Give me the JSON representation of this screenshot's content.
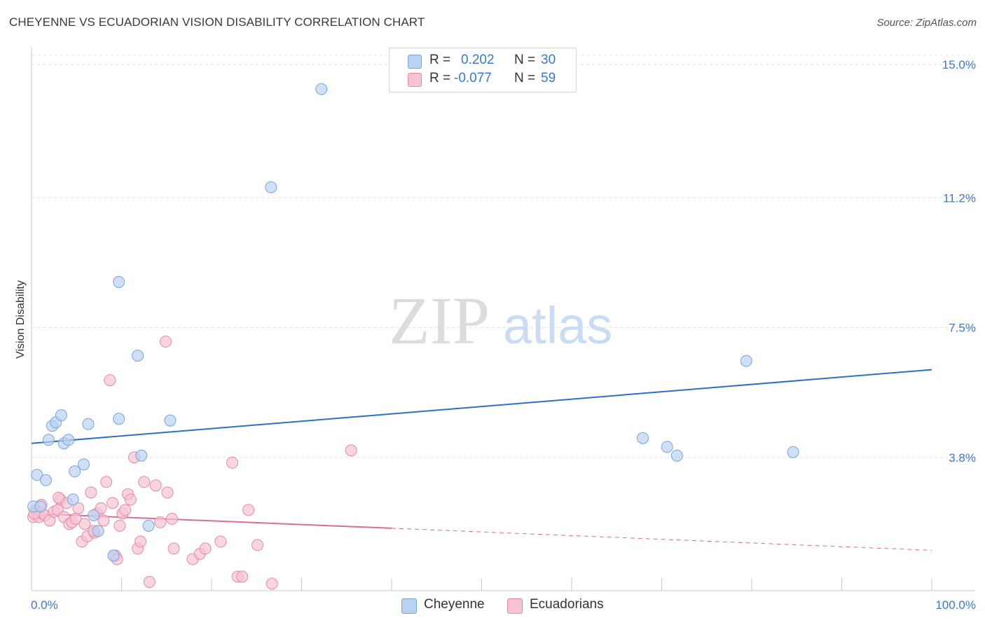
{
  "title": "CHEYENNE VS ECUADORIAN VISION DISABILITY CORRELATION CHART",
  "source": "Source: ZipAtlas.com",
  "watermark": {
    "zip": "ZIP",
    "atlas": "atlas"
  },
  "legend_top": [
    {
      "r_label": "R =",
      "r_value": "0.202",
      "n_label": "N =",
      "n_value": "30"
    },
    {
      "r_label": "R =",
      "r_value": "-0.077",
      "n_label": "N =",
      "n_value": "59"
    }
  ],
  "legend_bottom": [
    "Cheyenne",
    "Ecuadorians"
  ],
  "colors": {
    "cheyenne_fill": "#b9d2f2",
    "cheyenne_stroke": "#7aa5dc",
    "cheyenne_line": "#2c6fcc",
    "ecuador_fill": "#f7c3d3",
    "ecuador_stroke": "#e88aa8",
    "ecuador_line": "#e06a96",
    "tick_label": "#3a78d4",
    "grid": "#e3e3e3"
  },
  "chart_data": {
    "type": "scatter",
    "title": "CHEYENNE VS ECUADORIAN VISION DISABILITY CORRELATION CHART",
    "xlabel": "",
    "ylabel": "Vision Disability",
    "xlim": [
      0,
      100
    ],
    "ylim": [
      0,
      15.5
    ],
    "x_tick_labels": [
      "0.0%",
      "100.0%"
    ],
    "y_ticks": [
      3.8,
      7.5,
      11.2,
      15.0
    ],
    "y_tick_labels": [
      "3.8%",
      "7.5%",
      "11.2%",
      "15.0%"
    ],
    "grid": true,
    "legend_position": "top-center",
    "series": [
      {
        "name": "Cheyenne",
        "r": 0.202,
        "n": 30,
        "trend": {
          "x": [
            0,
            100
          ],
          "y": [
            4.2,
            6.3
          ],
          "dashed_from": null
        },
        "points": [
          [
            0.2,
            2.4
          ],
          [
            1.0,
            2.4
          ],
          [
            0.6,
            3.3
          ],
          [
            1.6,
            3.15
          ],
          [
            1.9,
            4.3
          ],
          [
            2.3,
            4.7
          ],
          [
            2.7,
            4.8
          ],
          [
            3.3,
            5.0
          ],
          [
            3.6,
            4.2
          ],
          [
            4.1,
            4.3
          ],
          [
            4.6,
            2.6
          ],
          [
            4.8,
            3.4
          ],
          [
            5.8,
            3.6
          ],
          [
            6.3,
            4.75
          ],
          [
            6.9,
            2.15
          ],
          [
            7.4,
            1.7
          ],
          [
            9.1,
            1.0
          ],
          [
            9.7,
            8.8
          ],
          [
            9.7,
            4.9
          ],
          [
            11.8,
            6.7
          ],
          [
            12.2,
            3.85
          ],
          [
            13.0,
            1.85
          ],
          [
            15.4,
            4.85
          ],
          [
            26.6,
            11.5
          ],
          [
            32.2,
            14.3
          ],
          [
            67.9,
            4.35
          ],
          [
            70.6,
            4.1
          ],
          [
            71.7,
            3.85
          ],
          [
            79.4,
            6.55
          ],
          [
            84.6,
            3.95
          ]
        ]
      },
      {
        "name": "Ecuadorians",
        "r": -0.077,
        "n": 59,
        "trend": {
          "x": [
            0,
            100
          ],
          "y": [
            2.2,
            1.15
          ],
          "dashed_from": 40
        },
        "points": [
          [
            0.2,
            2.1
          ],
          [
            0.5,
            2.3
          ],
          [
            0.8,
            2.1
          ],
          [
            1.2,
            2.2
          ],
          [
            1.5,
            2.15
          ],
          [
            2.0,
            2.0
          ],
          [
            2.5,
            2.25
          ],
          [
            2.9,
            2.3
          ],
          [
            3.2,
            2.6
          ],
          [
            3.6,
            2.1
          ],
          [
            3.9,
            2.5
          ],
          [
            4.2,
            1.9
          ],
          [
            4.5,
            1.95
          ],
          [
            4.9,
            2.05
          ],
          [
            5.2,
            2.35
          ],
          [
            5.6,
            1.4
          ],
          [
            5.9,
            1.9
          ],
          [
            6.2,
            1.55
          ],
          [
            6.6,
            2.8
          ],
          [
            7.0,
            1.65
          ],
          [
            7.3,
            2.2
          ],
          [
            7.7,
            2.35
          ],
          [
            8.0,
            2.0
          ],
          [
            8.3,
            3.1
          ],
          [
            8.7,
            6.0
          ],
          [
            9.0,
            2.5
          ],
          [
            9.3,
            1.0
          ],
          [
            9.5,
            0.9
          ],
          [
            9.8,
            1.85
          ],
          [
            10.1,
            2.2
          ],
          [
            10.4,
            2.3
          ],
          [
            10.7,
            2.75
          ],
          [
            11.0,
            2.6
          ],
          [
            11.4,
            3.8
          ],
          [
            11.8,
            1.2
          ],
          [
            12.1,
            1.4
          ],
          [
            12.5,
            3.1
          ],
          [
            13.1,
            0.25
          ],
          [
            13.8,
            3.0
          ],
          [
            14.3,
            1.95
          ],
          [
            14.9,
            7.1
          ],
          [
            15.1,
            2.8
          ],
          [
            15.6,
            2.05
          ],
          [
            15.8,
            1.2
          ],
          [
            17.9,
            0.9
          ],
          [
            18.7,
            1.05
          ],
          [
            19.3,
            1.2
          ],
          [
            21.0,
            1.4
          ],
          [
            22.3,
            3.65
          ],
          [
            22.9,
            0.4
          ],
          [
            23.4,
            0.4
          ],
          [
            24.1,
            2.3
          ],
          [
            25.1,
            1.3
          ],
          [
            26.7,
            0.2
          ],
          [
            35.5,
            4.0
          ],
          [
            1.1,
            2.45
          ],
          [
            3.0,
            2.65
          ],
          [
            6.9,
            1.7
          ],
          [
            0.3,
            2.2
          ]
        ]
      }
    ]
  }
}
